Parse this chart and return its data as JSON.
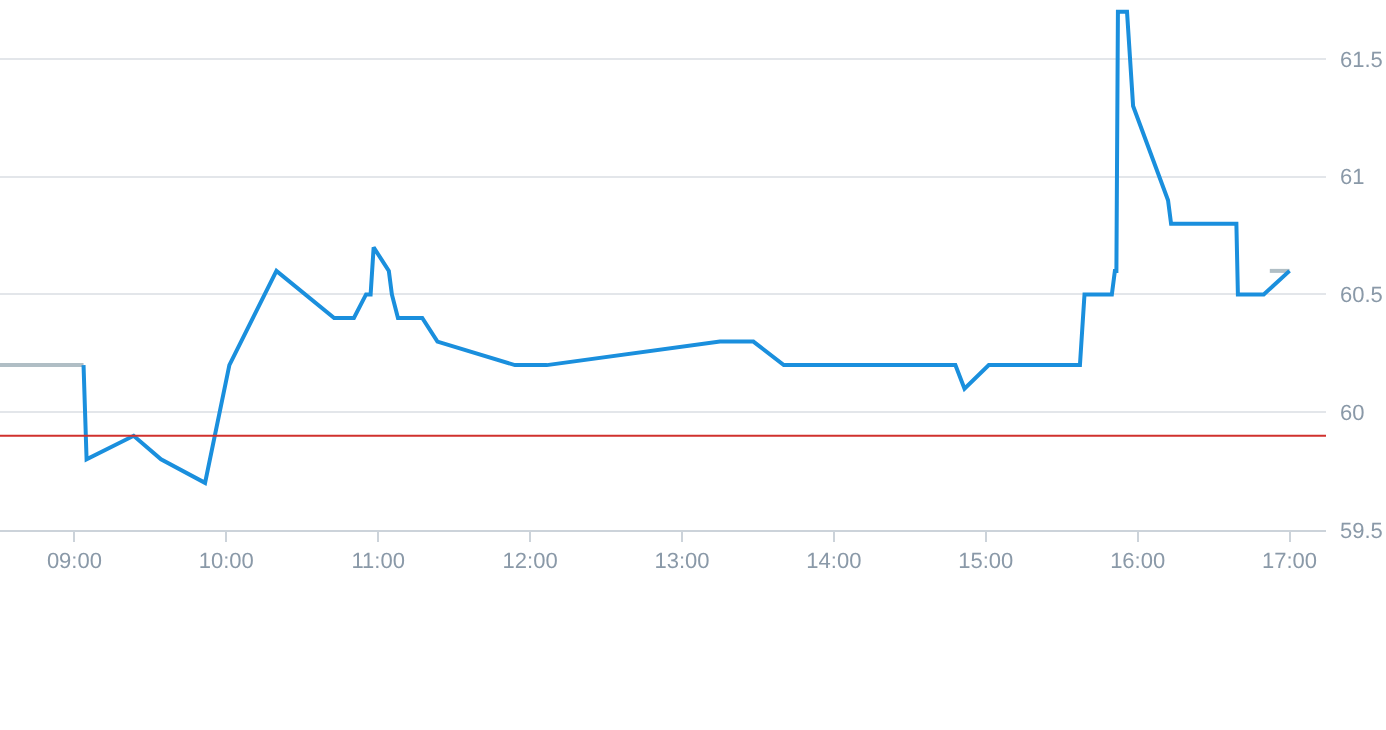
{
  "chart_data": {
    "type": "line",
    "xlim": [
      8.51,
      17.24
    ],
    "ylim": [
      59.5,
      61.75
    ],
    "xticks": [
      {
        "value": 9,
        "label": "09:00"
      },
      {
        "value": 10,
        "label": "10:00"
      },
      {
        "value": 11,
        "label": "11:00"
      },
      {
        "value": 12,
        "label": "12:00"
      },
      {
        "value": 13,
        "label": "13:00"
      },
      {
        "value": 14,
        "label": "14:00"
      },
      {
        "value": 15,
        "label": "15:00"
      },
      {
        "value": 16,
        "label": "16:00"
      },
      {
        "value": 17,
        "label": "17:00"
      }
    ],
    "yticks": [
      59.5,
      60,
      60.5,
      61,
      61.5
    ],
    "grid": "y",
    "marker": "none",
    "line_style": "solid",
    "ref_lines": [
      {
        "axis": "y",
        "value": 59.9,
        "color": "#d0312d"
      }
    ],
    "series": [
      {
        "color": "#b0bec5",
        "x": [
          8.51,
          9.06
        ],
        "values": [
          60.2,
          60.2
        ]
      },
      {
        "color": "#b0bec5",
        "x": [
          16.87,
          17.0
        ],
        "values": [
          60.6,
          60.6
        ]
      },
      {
        "color": "#1a8fdd",
        "x": [
          9.06,
          9.08,
          9.39,
          9.57,
          9.86,
          10.02,
          10.33,
          10.71,
          10.84,
          10.92,
          10.95,
          10.97,
          11.07,
          11.09,
          11.13,
          11.29,
          11.39,
          11.9,
          12.11,
          13.25,
          13.47,
          13.67,
          14.8,
          14.86,
          15.02,
          15.62,
          15.65,
          15.83,
          15.85,
          15.86,
          15.87,
          15.93,
          15.97,
          16.2,
          16.22,
          16.65,
          16.66,
          16.83,
          17.0
        ],
        "values": [
          60.2,
          59.8,
          59.9,
          59.8,
          59.7,
          60.2,
          60.6,
          60.4,
          60.4,
          60.5,
          60.5,
          60.7,
          60.6,
          60.5,
          60.4,
          60.4,
          60.3,
          60.2,
          60.2,
          60.3,
          60.3,
          60.2,
          60.2,
          60.1,
          60.2,
          60.2,
          60.5,
          60.5,
          60.6,
          60.6,
          61.7,
          61.7,
          61.3,
          60.9,
          60.8,
          60.8,
          60.5,
          60.5,
          60.6
        ]
      }
    ]
  }
}
